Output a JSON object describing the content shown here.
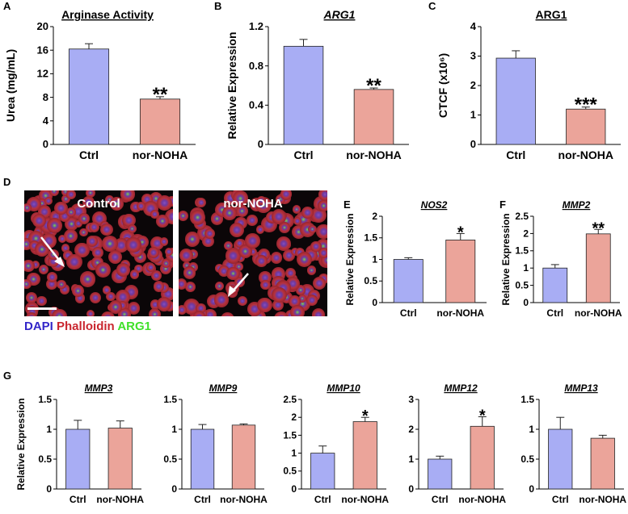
{
  "colors": {
    "ctrl": "#a8adf4",
    "treated": "#eba49a",
    "dapi": "#3326c9",
    "phalloidin": "#c9262f",
    "arg1": "#41e02b"
  },
  "panel_d": {
    "letter": "D",
    "control_label": "Control",
    "treated_label": "nor-NOHA",
    "stain_dapi": "DAPI",
    "stain_phalloidin": "Phalloidin",
    "stain_arg1": "ARG1"
  },
  "chart_data": [
    {
      "letter": "A",
      "type": "bar",
      "title": "Arginase Activity",
      "title_italic": false,
      "ylabel": "Urea (mg/mL)",
      "categories": [
        "Ctrl",
        "nor-NOHA"
      ],
      "values": [
        16.2,
        7.7
      ],
      "errors": [
        0.9,
        0.4
      ],
      "sig": [
        "",
        "**"
      ],
      "ylim": [
        0,
        20
      ],
      "yticks": [
        "0",
        "4",
        "8",
        "12",
        "16",
        "20"
      ]
    },
    {
      "letter": "B",
      "type": "bar",
      "title": "ARG1",
      "title_italic": true,
      "ylabel": "Relative Expression",
      "categories": [
        "Ctrl",
        "nor-NOHA"
      ],
      "values": [
        1.0,
        0.56
      ],
      "errors": [
        0.07,
        0.015
      ],
      "sig": [
        "",
        "**"
      ],
      "ylim": [
        0,
        1.2
      ],
      "yticks": [
        "0",
        "0.4",
        "0.8",
        "1.2"
      ]
    },
    {
      "letter": "C",
      "type": "bar",
      "title": "ARG1",
      "title_italic": false,
      "ylabel": "CTCF (x10⁶)",
      "categories": [
        "Ctrl",
        "nor-NOHA"
      ],
      "values": [
        2.93,
        1.2
      ],
      "errors": [
        0.25,
        0.07
      ],
      "sig": [
        "",
        "***"
      ],
      "ylim": [
        0,
        4
      ],
      "yticks": [
        "0",
        "1",
        "2",
        "3",
        "4"
      ]
    },
    {
      "letter": "E",
      "type": "bar",
      "title": "NOS2",
      "title_italic": true,
      "ylabel": "Relative Expression",
      "categories": [
        "Ctrl",
        "nor-NOHA"
      ],
      "values": [
        1.0,
        1.45
      ],
      "errors": [
        0.04,
        0.15
      ],
      "sig": [
        "",
        "*"
      ],
      "ylim": [
        0,
        2
      ],
      "yticks": [
        "0",
        "0.5",
        "1",
        "1.5",
        "2"
      ]
    },
    {
      "letter": "F",
      "type": "bar",
      "title": "MMP2",
      "title_italic": true,
      "ylabel": "Relative Expression",
      "categories": [
        "Ctrl",
        "nor-NOHA"
      ],
      "values": [
        1.0,
        1.99
      ],
      "errors": [
        0.1,
        0.13
      ],
      "sig": [
        "",
        "**"
      ],
      "ylim": [
        0,
        2.5
      ],
      "yticks": [
        "0",
        "0.5",
        "1",
        "1.5",
        "2",
        "2.5"
      ]
    },
    {
      "letter": "G",
      "type": "bar",
      "title": "MMP3",
      "title_italic": true,
      "ylabel": "Relative Expression",
      "categories": [
        "Ctrl",
        "nor-NOHA"
      ],
      "values": [
        1.0,
        1.02
      ],
      "errors": [
        0.15,
        0.12
      ],
      "sig": [
        "",
        ""
      ],
      "ylim": [
        0,
        1.5
      ],
      "yticks": [
        "0",
        "0.5",
        "1",
        "1.5"
      ]
    },
    {
      "letter": "",
      "type": "bar",
      "title": "MMP9",
      "title_italic": true,
      "ylabel": "",
      "categories": [
        "Ctrl",
        "nor-NOHA"
      ],
      "values": [
        1.0,
        1.07
      ],
      "errors": [
        0.08,
        0.02
      ],
      "sig": [
        "",
        ""
      ],
      "ylim": [
        0,
        1.5
      ],
      "yticks": [
        "0",
        "0.5",
        "1",
        "1.5"
      ]
    },
    {
      "letter": "",
      "type": "bar",
      "title": "MMP10",
      "title_italic": true,
      "ylabel": "",
      "categories": [
        "Ctrl",
        "nor-NOHA"
      ],
      "values": [
        1.0,
        1.88
      ],
      "errors": [
        0.2,
        0.12
      ],
      "sig": [
        "",
        "*"
      ],
      "ylim": [
        0,
        2.5
      ],
      "yticks": [
        "0",
        "0.5",
        "1",
        "1.5",
        "2",
        "2.5"
      ]
    },
    {
      "letter": "",
      "type": "bar",
      "title": "MMP12",
      "title_italic": true,
      "ylabel": "",
      "categories": [
        "Ctrl",
        "nor-NOHA"
      ],
      "values": [
        1.0,
        2.1
      ],
      "errors": [
        0.1,
        0.32
      ],
      "sig": [
        "",
        "*"
      ],
      "ylim": [
        0,
        3
      ],
      "yticks": [
        "0",
        "1",
        "2",
        "3"
      ]
    },
    {
      "letter": "",
      "type": "bar",
      "title": "MMP13",
      "title_italic": true,
      "ylabel": "",
      "categories": [
        "Ctrl",
        "nor-NOHA"
      ],
      "values": [
        1.0,
        0.85
      ],
      "errors": [
        0.2,
        0.05
      ],
      "sig": [
        "",
        ""
      ],
      "ylim": [
        0,
        1.5
      ],
      "yticks": [
        "0",
        "0.5",
        "1",
        "1.5"
      ]
    }
  ]
}
